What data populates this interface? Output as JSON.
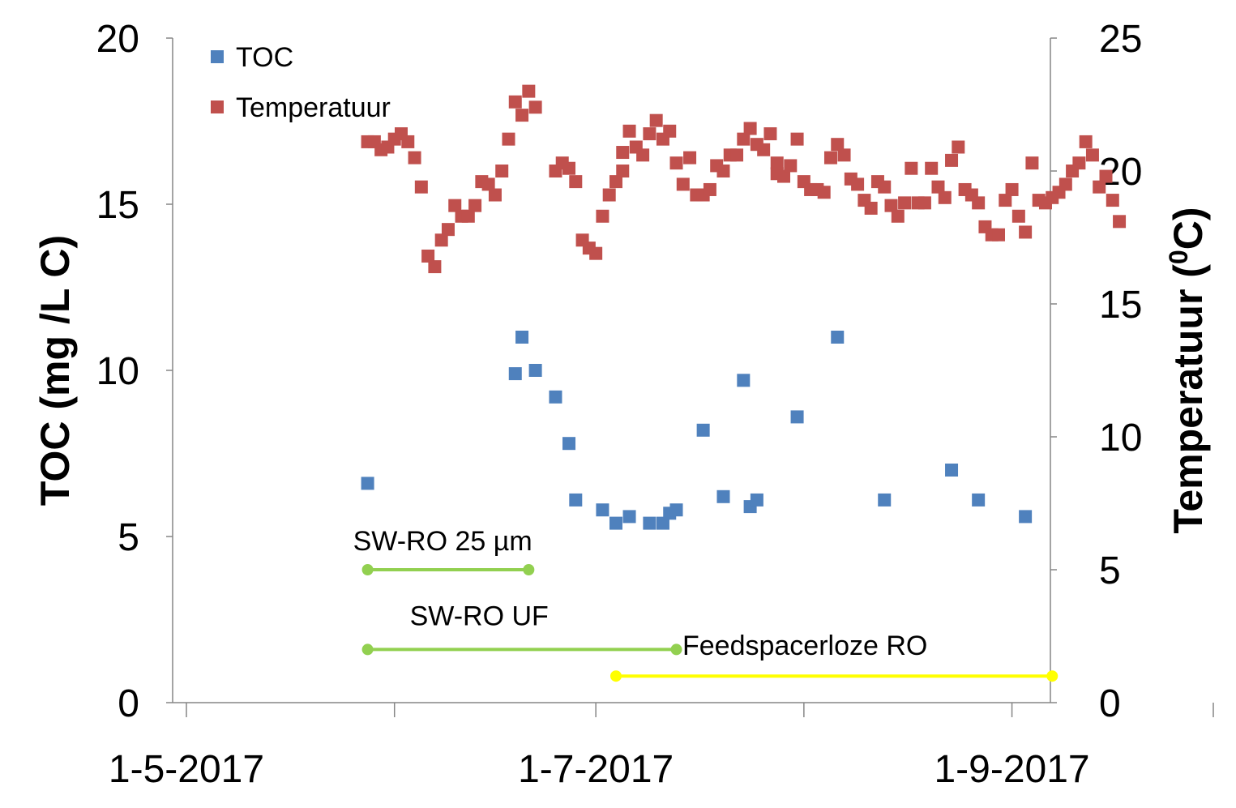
{
  "chart_data": {
    "type": "scatter",
    "x_axis": {
      "ticks": [
        "1-5-2017",
        "1-7-2017",
        "1-9-2017"
      ],
      "range": [
        "2017-05-01",
        "2017-10-01"
      ]
    },
    "y_left": {
      "label": "TOC (mg /L C)",
      "ticks": [
        "0",
        "5",
        "10",
        "15",
        "20"
      ],
      "range": [
        0,
        20
      ]
    },
    "y_right": {
      "label_main": "Temperatuur (",
      "label_sup": "0",
      "label_end": "C)",
      "ticks": [
        "0",
        "5",
        "10",
        "15",
        "20",
        "25"
      ],
      "range": [
        0,
        25
      ]
    },
    "legend": {
      "position": "top-left"
    },
    "colors": {
      "toc": "#4f81bd",
      "temp": "#c0504d",
      "sw_ro_25": "#92d050",
      "sw_ro_uf": "#92d050",
      "feedspacer": "#ffff00",
      "axis": "#868686"
    },
    "series": [
      {
        "name": "TOC",
        "axis": "left",
        "points": [
          [
            "2017-05-28",
            6.6
          ],
          [
            "2017-06-19",
            9.9
          ],
          [
            "2017-06-20",
            11.0
          ],
          [
            "2017-06-22",
            10.0
          ],
          [
            "2017-06-25",
            9.2
          ],
          [
            "2017-06-27",
            7.8
          ],
          [
            "2017-06-28",
            6.1
          ],
          [
            "2017-07-02",
            5.8
          ],
          [
            "2017-07-04",
            5.4
          ],
          [
            "2017-07-06",
            5.6
          ],
          [
            "2017-07-09",
            5.4
          ],
          [
            "2017-07-11",
            5.4
          ],
          [
            "2017-07-12",
            5.7
          ],
          [
            "2017-07-13",
            5.8
          ],
          [
            "2017-07-17",
            8.2
          ],
          [
            "2017-07-20",
            6.2
          ],
          [
            "2017-07-23",
            9.7
          ],
          [
            "2017-07-24",
            5.9
          ],
          [
            "2017-07-25",
            6.1
          ],
          [
            "2017-07-31",
            8.6
          ],
          [
            "2017-08-06",
            11.0
          ],
          [
            "2017-08-13",
            6.1
          ],
          [
            "2017-08-23",
            7.0
          ],
          [
            "2017-08-27",
            6.1
          ],
          [
            "2017-09-03",
            5.6
          ]
        ]
      },
      {
        "name": "Temperatuur",
        "axis": "right",
        "points": [
          [
            "2017-05-28",
            21.1
          ],
          [
            "2017-05-29",
            21.1
          ],
          [
            "2017-05-30",
            20.8
          ],
          [
            "2017-05-31",
            20.9
          ],
          [
            "2017-06-01",
            21.2
          ],
          [
            "2017-06-02",
            21.4
          ],
          [
            "2017-06-03",
            21.1
          ],
          [
            "2017-06-04",
            20.5
          ],
          [
            "2017-06-05",
            19.4
          ],
          [
            "2017-06-06",
            16.8
          ],
          [
            "2017-06-07",
            16.4
          ],
          [
            "2017-06-08",
            17.4
          ],
          [
            "2017-06-09",
            17.8
          ],
          [
            "2017-06-10",
            18.7
          ],
          [
            "2017-06-11",
            18.3
          ],
          [
            "2017-06-12",
            18.3
          ],
          [
            "2017-06-13",
            18.7
          ],
          [
            "2017-06-14",
            19.6
          ],
          [
            "2017-06-15",
            19.5
          ],
          [
            "2017-06-16",
            19.1
          ],
          [
            "2017-06-17",
            20.0
          ],
          [
            "2017-06-18",
            21.2
          ],
          [
            "2017-06-19",
            22.6
          ],
          [
            "2017-06-20",
            22.1
          ],
          [
            "2017-06-21",
            23.0
          ],
          [
            "2017-06-22",
            22.4
          ],
          [
            "2017-06-25",
            20.0
          ],
          [
            "2017-06-26",
            20.3
          ],
          [
            "2017-06-27",
            20.1
          ],
          [
            "2017-06-28",
            19.6
          ],
          [
            "2017-06-29",
            17.4
          ],
          [
            "2017-06-30",
            17.1
          ],
          [
            "2017-07-01",
            16.9
          ],
          [
            "2017-07-02",
            18.3
          ],
          [
            "2017-07-03",
            19.1
          ],
          [
            "2017-07-04",
            19.6
          ],
          [
            "2017-07-05",
            20.0
          ],
          [
            "2017-07-05",
            20.7
          ],
          [
            "2017-07-06",
            21.5
          ],
          [
            "2017-07-07",
            20.9
          ],
          [
            "2017-07-08",
            20.6
          ],
          [
            "2017-07-09",
            21.4
          ],
          [
            "2017-07-10",
            21.9
          ],
          [
            "2017-07-11",
            21.2
          ],
          [
            "2017-07-12",
            21.5
          ],
          [
            "2017-07-13",
            20.3
          ],
          [
            "2017-07-14",
            19.5
          ],
          [
            "2017-07-15",
            20.5
          ],
          [
            "2017-07-16",
            19.1
          ],
          [
            "2017-07-17",
            19.1
          ],
          [
            "2017-07-18",
            19.3
          ],
          [
            "2017-07-19",
            20.2
          ],
          [
            "2017-07-20",
            20.0
          ],
          [
            "2017-07-21",
            20.6
          ],
          [
            "2017-07-22",
            20.6
          ],
          [
            "2017-07-23",
            21.2
          ],
          [
            "2017-07-24",
            21.6
          ],
          [
            "2017-07-25",
            21.0
          ],
          [
            "2017-07-26",
            20.8
          ],
          [
            "2017-07-27",
            21.4
          ],
          [
            "2017-07-28",
            20.3
          ],
          [
            "2017-07-28",
            19.9
          ],
          [
            "2017-07-29",
            19.8
          ],
          [
            "2017-07-30",
            20.2
          ],
          [
            "2017-07-31",
            21.2
          ],
          [
            "2017-08-01",
            19.6
          ],
          [
            "2017-08-02",
            19.3
          ],
          [
            "2017-08-03",
            19.3
          ],
          [
            "2017-08-04",
            19.2
          ],
          [
            "2017-08-05",
            20.5
          ],
          [
            "2017-08-06",
            21.0
          ],
          [
            "2017-08-07",
            20.6
          ],
          [
            "2017-08-08",
            19.7
          ],
          [
            "2017-08-09",
            19.5
          ],
          [
            "2017-08-10",
            18.9
          ],
          [
            "2017-08-11",
            18.6
          ],
          [
            "2017-08-12",
            19.6
          ],
          [
            "2017-08-13",
            19.4
          ],
          [
            "2017-08-14",
            18.7
          ],
          [
            "2017-08-15",
            18.3
          ],
          [
            "2017-08-16",
            18.8
          ],
          [
            "2017-08-17",
            20.1
          ],
          [
            "2017-08-18",
            18.8
          ],
          [
            "2017-08-19",
            18.8
          ],
          [
            "2017-08-20",
            20.1
          ],
          [
            "2017-08-21",
            19.4
          ],
          [
            "2017-08-22",
            19.0
          ],
          [
            "2017-08-23",
            20.4
          ],
          [
            "2017-08-24",
            20.9
          ],
          [
            "2017-08-25",
            19.3
          ],
          [
            "2017-08-26",
            19.1
          ],
          [
            "2017-08-27",
            18.8
          ],
          [
            "2017-08-28",
            17.9
          ],
          [
            "2017-08-29",
            17.6
          ],
          [
            "2017-08-30",
            17.6
          ],
          [
            "2017-08-31",
            18.9
          ],
          [
            "2017-09-01",
            19.3
          ],
          [
            "2017-09-02",
            18.3
          ],
          [
            "2017-09-03",
            17.7
          ],
          [
            "2017-09-04",
            20.3
          ],
          [
            "2017-09-05",
            18.9
          ],
          [
            "2017-09-06",
            18.8
          ],
          [
            "2017-09-07",
            19.0
          ],
          [
            "2017-09-08",
            19.2
          ],
          [
            "2017-09-09",
            19.5
          ],
          [
            "2017-09-10",
            20.0
          ],
          [
            "2017-09-11",
            20.3
          ],
          [
            "2017-09-12",
            21.1
          ],
          [
            "2017-09-13",
            20.6
          ],
          [
            "2017-09-14",
            19.4
          ],
          [
            "2017-09-15",
            19.8
          ],
          [
            "2017-09-16",
            18.9
          ],
          [
            "2017-09-17",
            18.1
          ]
        ]
      }
    ],
    "periods": [
      {
        "label": "SW-RO 25 µm",
        "start": "2017-05-28",
        "end": "2017-06-21",
        "level": 4.0,
        "color_key": "sw_ro_25"
      },
      {
        "label": "SW-RO UF",
        "start": "2017-05-28",
        "end": "2017-07-13",
        "level": 1.6,
        "color_key": "sw_ro_uf"
      },
      {
        "label": "Feedspacerloze RO",
        "start": "2017-07-04",
        "end": "2017-09-07",
        "level": 0.8,
        "color_key": "feedspacer"
      }
    ]
  }
}
